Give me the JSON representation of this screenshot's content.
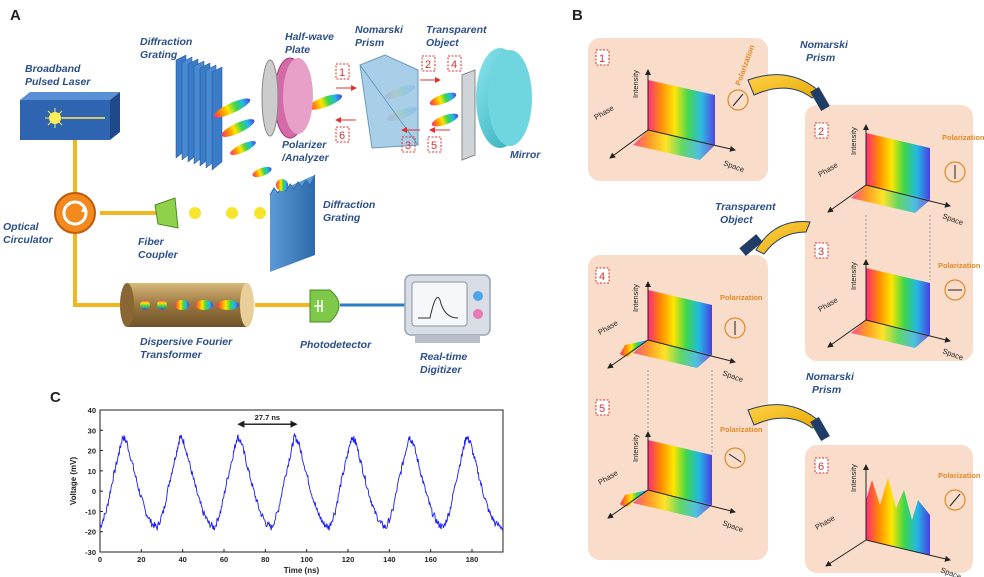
{
  "panel_a": {
    "letter": "A",
    "laser": [
      "Broadband",
      "Pulsed Laser"
    ],
    "circulator": [
      "Optical",
      "Circulator"
    ],
    "grating1": [
      "Diffraction",
      "Grating"
    ],
    "halfwave": [
      "Half-wave",
      "Plate"
    ],
    "polarizer": [
      "Polarizer",
      "/Analyzer"
    ],
    "nomarski": [
      "Nomarski",
      "Prism"
    ],
    "transparent": [
      "Transparent",
      "Object"
    ],
    "mirror": "Mirror",
    "grating2": [
      "Diffraction",
      "Grating"
    ],
    "coupler": [
      "Fiber",
      "Coupler"
    ],
    "dft": [
      "Dispersive Fourier",
      "Transformer"
    ],
    "photodetector": "Photodetector",
    "digitizer": [
      "Real-time",
      "Digitizer"
    ],
    "steps": [
      "1",
      "2",
      "3",
      "4",
      "5",
      "6"
    ]
  },
  "panel_b": {
    "letter": "B",
    "arrow1": [
      "Nomarski",
      "Prism"
    ],
    "arrow2": [
      "Transparent",
      "Object"
    ],
    "arrow3": [
      "Nomarski",
      "Prism"
    ],
    "axis_intensity": "Intensity",
    "axis_phase": "Phase",
    "axis_space": "Space",
    "polarization": "Polarization",
    "steps": [
      "1",
      "2",
      "3",
      "4",
      "5",
      "6"
    ]
  },
  "chart_data": {
    "type": "line",
    "panel_letter": "C",
    "xlabel": "Time (ns)",
    "ylabel": "Voltage (mV)",
    "xlim": [
      0,
      195
    ],
    "ylim": [
      -30,
      40
    ],
    "xticks": [
      0,
      20,
      40,
      60,
      80,
      100,
      120,
      140,
      160,
      180
    ],
    "yticks": [
      40,
      30,
      20,
      10,
      0,
      -10,
      -20,
      -30
    ],
    "annotation": "27.7 ns",
    "annotation_span": [
      67,
      95
    ],
    "series": [
      {
        "color": "#1a1aff",
        "x": [
          0,
          3,
          6,
          9,
          11,
          13,
          16,
          19,
          22,
          25,
          27.7,
          30.7,
          33.7,
          36.7,
          38.7,
          40.7,
          43.7,
          46.7,
          49.7,
          52.7,
          55.4,
          58.4,
          61.4,
          64.4,
          66.4,
          68.4,
          71.4,
          74.4,
          77.4,
          80.4,
          83.1,
          86.1,
          89.1,
          92.1,
          94.1,
          96.1,
          99.1,
          102.1,
          105.1,
          108.1,
          110.8,
          113.8,
          116.8,
          119.8,
          121.8,
          123.8,
          126.8,
          129.8,
          132.8,
          135.8,
          138.5,
          141.5,
          144.5,
          147.5,
          149.5,
          151.5,
          154.5,
          157.5,
          160.5,
          163.5,
          166.2,
          169.2,
          172.2,
          175.2,
          177.2,
          179.2,
          182.2,
          185.2,
          188.2,
          191.2,
          195
        ],
        "y": [
          -18,
          -10,
          5,
          18,
          27,
          24,
          12,
          0,
          -10,
          -16,
          -18,
          -10,
          5,
          18,
          27,
          24,
          12,
          0,
          -10,
          -16,
          -18,
          -10,
          5,
          18,
          27,
          24,
          12,
          0,
          -10,
          -16,
          -18,
          -10,
          5,
          18,
          27,
          24,
          12,
          0,
          -10,
          -16,
          -18,
          -10,
          5,
          18,
          27,
          24,
          12,
          0,
          -10,
          -16,
          -18,
          -10,
          5,
          18,
          27,
          24,
          12,
          0,
          -10,
          -16,
          -18,
          -10,
          5,
          18,
          27,
          24,
          12,
          0,
          -10,
          -16,
          -18
        ]
      }
    ]
  }
}
